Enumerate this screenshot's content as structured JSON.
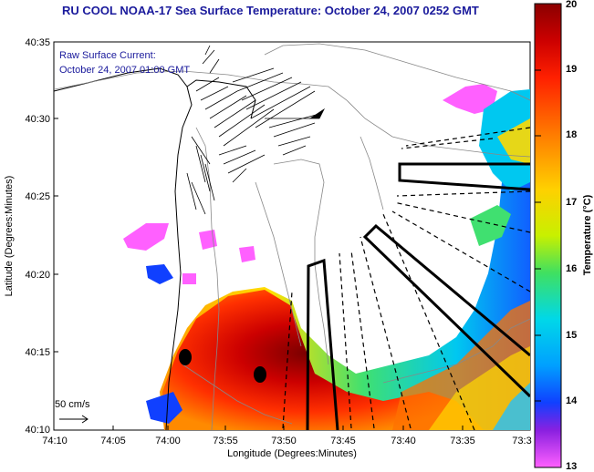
{
  "title": "RU COOL  NOAA-17  Sea Surface Temperature:  October 24, 2007 0252 GMT",
  "annotation": {
    "line1": "Raw Surface Current:",
    "line2": "October 24, 2007 01:00 GMT"
  },
  "scale_label": "50 cm/s",
  "axes": {
    "xlabel": "Longitude (Degrees:Minutes)",
    "ylabel": "Latitude (Degrees:Minutes)",
    "x_ticks": [
      "74:10",
      "74:05",
      "74:00",
      "73:55",
      "73:50",
      "73:45",
      "73:40",
      "73:35",
      "73:3"
    ],
    "y_ticks": [
      "40:35",
      "40:30",
      "40:25",
      "40:20",
      "40:15",
      "40:10"
    ]
  },
  "colorbar": {
    "label": "Temperature (°C)",
    "ticks": [
      "20",
      "19",
      "18",
      "17",
      "16",
      "15",
      "14",
      "13"
    ],
    "min": 13,
    "max": 20
  },
  "colors": {
    "title": "#1a1a9c",
    "annotation": "#1a1a9c"
  }
}
